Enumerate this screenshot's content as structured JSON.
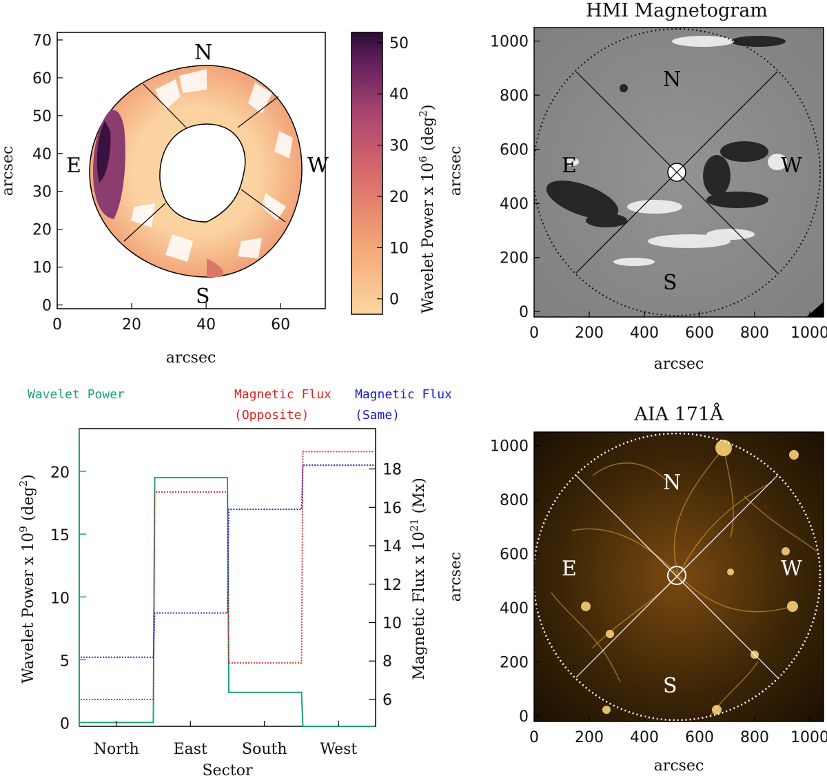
{
  "colors": {
    "wavelet": "#1aa37a",
    "flux_opposite": "#e02020",
    "flux_same": "#1a1ad0",
    "hmi_bg": "#8a8a8a",
    "aia_bg": "#2a1a05"
  },
  "chart_data": [
    {
      "id": "power-map",
      "type": "heatmap",
      "xlabel": "arcsec",
      "ylabel": "arcsec",
      "xlim": [
        0,
        72
      ],
      "ylim": [
        -1,
        72
      ],
      "xticks": [
        "0",
        "20",
        "40",
        "60"
      ],
      "xtick_values": [
        0,
        20,
        40,
        60
      ],
      "yticks": [
        "0",
        "10",
        "20",
        "30",
        "40",
        "50",
        "60",
        "70"
      ],
      "ytick_values": [
        0,
        10,
        20,
        30,
        40,
        50,
        60,
        70
      ],
      "directions": {
        "north": "N",
        "south": "S",
        "east": "E",
        "west": "W"
      },
      "colorbar": {
        "label": "Wavelet Power x 10",
        "label_exp": "6",
        "label_unit_pre": " (deg",
        "label_unit_exp": "2",
        "label_unit_post": ")",
        "range": [
          -3,
          52
        ],
        "ticks": [
          "0",
          "10",
          "20",
          "30",
          "40",
          "50"
        ],
        "tick_values": [
          0,
          10,
          20,
          30,
          40,
          50
        ]
      }
    },
    {
      "id": "hmi",
      "type": "image",
      "title": "HMI Magnetogram",
      "xlabel": "arcsec",
      "ylabel": "arcsec",
      "xlim": [
        0,
        1050
      ],
      "ylim": [
        -20,
        1050
      ],
      "xticks": [
        "0",
        "200",
        "400",
        "600",
        "800",
        "1000"
      ],
      "xtick_values": [
        0,
        200,
        400,
        600,
        800,
        1000
      ],
      "yticks": [
        "0",
        "200",
        "400",
        "600",
        "800",
        "1000"
      ],
      "ytick_values": [
        0,
        200,
        400,
        600,
        800,
        1000
      ],
      "directions": {
        "north": "N",
        "south": "S",
        "east": "E",
        "west": "W"
      }
    },
    {
      "id": "sector-bar",
      "type": "line",
      "xlabel": "Sector",
      "categories": [
        "North",
        "East",
        "South",
        "West"
      ],
      "left_axis": {
        "label_pre": "Wavelet Power x 10",
        "label_exp": "9",
        "label_unit_pre": " (deg",
        "label_unit_exp": "2",
        "label_unit_post": ")",
        "ylim": [
          -0.3,
          23.4
        ],
        "ticks": [
          "0",
          "5",
          "10",
          "15",
          "20"
        ],
        "tick_values": [
          0,
          5,
          10,
          15,
          20
        ]
      },
      "right_axis": {
        "label_pre": "Magnetic Flux x 10",
        "label_exp": "21",
        "label_unit": " (Mx)",
        "ylim": [
          4.6,
          20.1
        ],
        "ticks": [
          "6",
          "8",
          "10",
          "12",
          "14",
          "16",
          "18"
        ],
        "tick_values": [
          6,
          8,
          10,
          12,
          14,
          16,
          18
        ]
      },
      "series": [
        {
          "name": "Wavelet Power",
          "axis": "left",
          "values": [
            0.0,
            19.5,
            2.4,
            -0.3
          ]
        },
        {
          "name": "Magnetic Flux (Opposite)",
          "axis": "right",
          "values": [
            6.0,
            16.8,
            7.9,
            18.9
          ]
        },
        {
          "name": "Magnetic Flux (Same)",
          "axis": "right",
          "values": [
            8.2,
            10.5,
            15.9,
            18.2
          ]
        }
      ],
      "legend": {
        "wavelet": "Wavelet Power",
        "opposite_line1": "Magnetic Flux",
        "opposite_line2": "(Opposite)",
        "same_line1": "Magnetic Flux",
        "same_line2": "(Same)"
      },
      "far_right_label": "arcsec"
    },
    {
      "id": "aia",
      "type": "image",
      "title": "AIA 171Å",
      "xlabel": "arcsec",
      "ylabel": "arcsec",
      "xlim": [
        0,
        1050
      ],
      "ylim": [
        -20,
        1050
      ],
      "xticks": [
        "0",
        "200",
        "400",
        "600",
        "800",
        "1000"
      ],
      "xtick_values": [
        0,
        200,
        400,
        600,
        800,
        1000
      ],
      "yticks": [
        "0",
        "200",
        "400",
        "600",
        "800",
        "1000"
      ],
      "ytick_values": [
        0,
        200,
        400,
        600,
        800,
        1000
      ],
      "directions": {
        "north": "N",
        "south": "S",
        "east": "E",
        "west": "W"
      }
    }
  ]
}
